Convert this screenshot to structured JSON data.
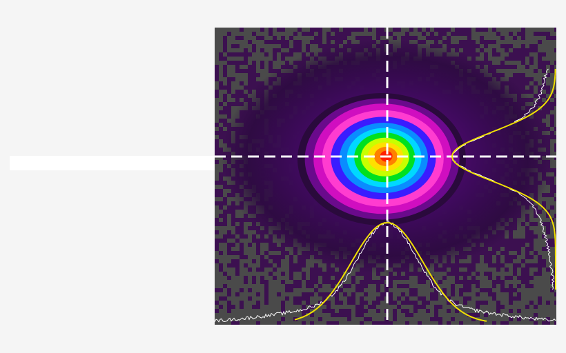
{
  "image": {
    "subject": "beam-profile",
    "palette": {
      "noise_gray": "#4a4a4a",
      "noise_purple": "#3c1050",
      "bg_purple": "#2c0a40",
      "crosshair": "#ffffff",
      "fit_curve": "#f0e000",
      "profile_curve": "#ffffff"
    },
    "colormap": [
      "#2a0a3c",
      "#6a0a8c",
      "#d00ec0",
      "#ff3cd0",
      "#3a1cff",
      "#0a8cff",
      "#00d8ff",
      "#00e020",
      "#c8ff00",
      "#ffe000",
      "#ff8000",
      "#ff2000"
    ]
  }
}
